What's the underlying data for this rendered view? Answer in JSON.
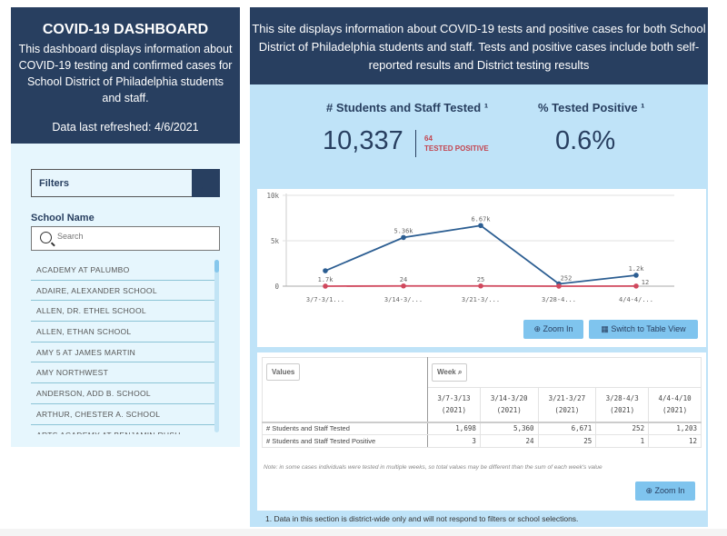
{
  "left_header": {
    "title": "COVID-19 DASHBOARD",
    "description": "This dashboard displays information about COVID-19 testing and confirmed cases for School District of Philadelphia students and staff.",
    "refreshed": "Data last refreshed: 4/6/2021"
  },
  "filters": {
    "label": "Filters",
    "add_icon": "plus-icon",
    "school_label": "School Name",
    "search_placeholder": "Search",
    "schools": [
      "ACADEMY AT PALUMBO",
      "ADAIRE, ALEXANDER SCHOOL",
      "ALLEN, DR. ETHEL SCHOOL",
      "ALLEN, ETHAN SCHOOL",
      "AMY 5 AT JAMES MARTIN",
      "AMY NORTHWEST",
      "ANDERSON, ADD B. SCHOOL",
      "ARTHUR, CHESTER A. SCHOOL",
      "ARTS ACADEMY AT BENJAMIN RUSH"
    ]
  },
  "right_header": {
    "text": "This site displays information about COVID-19 tests and positive cases for both School District of Philadelphia students and staff. Tests and positive cases include both self-reported results and District testing results"
  },
  "kpi": {
    "tested_title": "# Students and Staff Tested ¹",
    "tested_value": "10,337",
    "positive_count": "64",
    "positive_label": "TESTED POSITIVE",
    "pct_title": "% Tested Positive ¹",
    "pct_value": "0.6%"
  },
  "colors": {
    "navy": "#283f60",
    "tested_line": "#2c5e92",
    "positive_line": "#d0485d",
    "accent_button": "#7fc4ee"
  },
  "chart_data": {
    "type": "line",
    "categories": [
      "3/7-3/1...",
      "3/14-3/...",
      "3/21-3/...",
      "3/28-4...",
      "4/4-4/..."
    ],
    "ylim": [
      0,
      10000
    ],
    "yticks": [
      "0",
      "5k",
      "10k"
    ],
    "grid": true,
    "series": [
      {
        "values": [
          1698,
          5360,
          6671,
          252,
          1203
        ],
        "labels": [
          "1.7k",
          "5.36k",
          "6.67k",
          "252",
          "1.2k"
        ],
        "color": "#2c5e92"
      },
      {
        "values": [
          3,
          24,
          25,
          1,
          12
        ],
        "labels": [
          "",
          "24",
          "25",
          "",
          "12"
        ],
        "color": "#d0485d"
      }
    ]
  },
  "chart_buttons": {
    "zoom": "Zoom In",
    "table_view": "Switch to Table View"
  },
  "table": {
    "values_tag": "Values",
    "week_tag": "Week",
    "weeks": [
      [
        "3/7-3/13",
        "(2021)"
      ],
      [
        "3/14-3/20",
        "(2021)"
      ],
      [
        "3/21-3/27",
        "(2021)"
      ],
      [
        "3/28-4/3",
        "(2021)"
      ],
      [
        "4/4-4/10",
        "(2021)"
      ]
    ],
    "rows": [
      {
        "label": "# Students and Staff Tested",
        "values": [
          "1,698",
          "5,360",
          "6,671",
          "252",
          "1,203"
        ]
      },
      {
        "label": "# Students and Staff Tested Positive",
        "values": [
          "3",
          "24",
          "25",
          "1",
          "12"
        ]
      }
    ],
    "note": "Note: in some cases individuals were tested in multiple weeks, so total values may be different than the sum of each week's value",
    "zoom": "Zoom In"
  },
  "footnote": "1. Data in this section is district-wide only and will not respond to filters or school selections."
}
